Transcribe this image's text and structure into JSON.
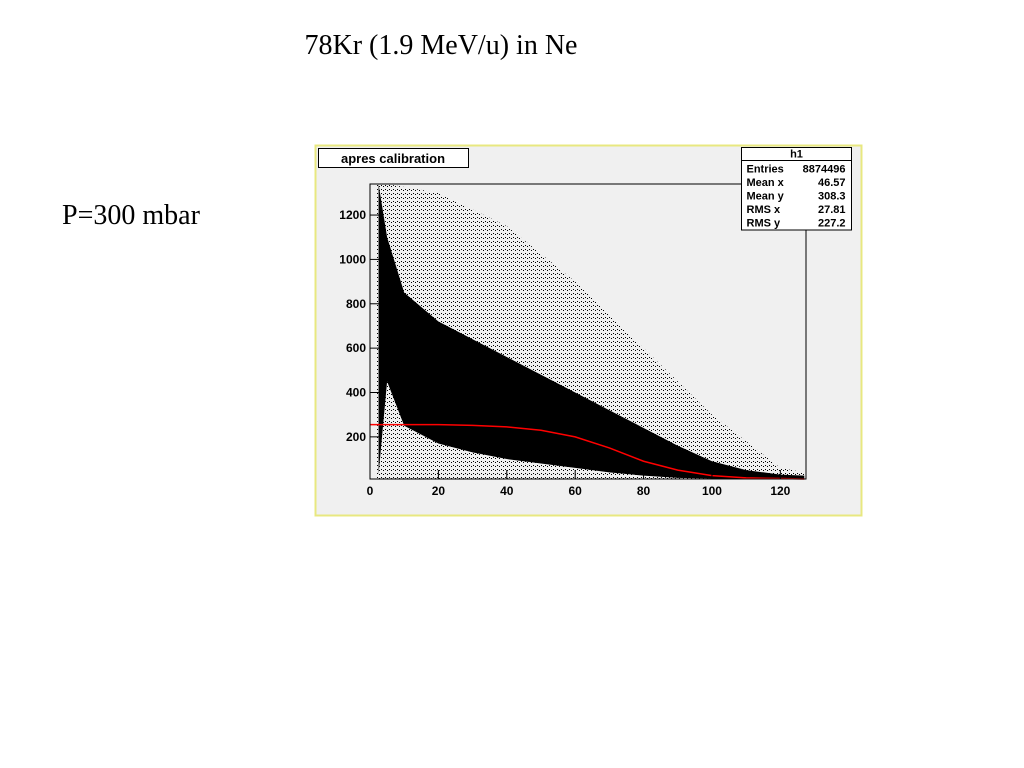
{
  "title": "78Kr (1.9 MeV/u) in Ne",
  "label": "P=300 mbar",
  "chart_data": {
    "type": "scatter",
    "title": "apres calibration",
    "stats": {
      "title": "h1",
      "rows": [
        {
          "label": "Entries",
          "value": 8874496
        },
        {
          "label": "Mean x",
          "value": 46.57
        },
        {
          "label": "Mean y",
          "value": 308.3
        },
        {
          "label": "RMS x",
          "value": 27.81
        },
        {
          "label": "RMS y",
          "value": 227.2
        }
      ]
    },
    "xlim": [
      0,
      127.5
    ],
    "xticks": [
      0,
      20,
      40,
      60,
      80,
      100,
      120
    ],
    "ylim": [
      10,
      1340
    ],
    "yticks": [
      200,
      400,
      600,
      800,
      1000,
      1200
    ],
    "sparse": {
      "color": "#000000",
      "x": [
        2,
        5,
        20,
        40,
        60,
        80,
        100,
        120,
        127
      ],
      "upper": [
        1340,
        1340,
        1300,
        1150,
        900,
        600,
        300,
        60,
        40
      ],
      "lower": [
        10,
        10,
        10,
        10,
        10,
        10,
        10,
        10,
        10
      ]
    },
    "band": {
      "color": "#000000",
      "x": [
        2.5,
        5,
        10,
        20,
        30,
        40,
        50,
        60,
        70,
        80,
        90,
        100,
        110,
        120,
        127
      ],
      "upper": [
        1340,
        1100,
        850,
        720,
        640,
        560,
        480,
        400,
        320,
        240,
        160,
        90,
        50,
        30,
        25
      ],
      "lower": [
        30,
        450,
        250,
        170,
        130,
        100,
        80,
        60,
        40,
        25,
        15,
        12,
        12,
        12,
        12
      ]
    },
    "fit": {
      "color": "#ff0000",
      "x": [
        0,
        10,
        20,
        30,
        40,
        50,
        60,
        70,
        80,
        90,
        100,
        110,
        120,
        127
      ],
      "values": [
        255,
        255,
        255,
        252,
        245,
        230,
        200,
        150,
        90,
        50,
        25,
        15,
        12,
        10
      ]
    }
  }
}
